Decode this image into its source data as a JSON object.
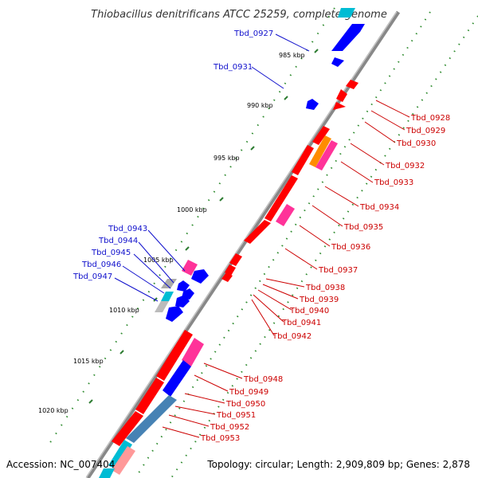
{
  "title": "Thiobacillus denitrificans ATCC 25259, complete genome",
  "footer": {
    "accession": "Accession: NC_007404",
    "summary": "Topology: circular; Length: 2,909,809 bp; Genes: 2,878"
  },
  "colors": {
    "backbone": "#8a8a8a",
    "tick": "#2e8b2e",
    "forward_label": "#1010cc",
    "reverse_label": "#cc0000",
    "forward_gene": "#0000ff",
    "reverse_gene": "#ff0000",
    "pink": "#ff3399",
    "orange": "#ff8c00",
    "steelblue": "#4682b4",
    "cyan": "#00bcd4",
    "gray": "#999999",
    "lightpink": "#ff9999"
  },
  "scale": {
    "labels": [
      "985 kbp",
      "990 kbp",
      "995 kbp",
      "1000 kbp",
      "1005 kbp",
      "1010 kbp",
      "1015 kbp",
      "1020 kbp"
    ]
  },
  "genes": {
    "forward": [
      "Tbd_0927",
      "Tbd_0931",
      "Tbd_0943",
      "Tbd_0944",
      "Tbd_0945",
      "Tbd_0946",
      "Tbd_0947"
    ],
    "reverse": [
      "Tbd_0928",
      "Tbd_0929",
      "Tbd_0930",
      "Tbd_0932",
      "Tbd_0933",
      "Tbd_0934",
      "Tbd_0935",
      "Tbd_0936",
      "Tbd_0937",
      "Tbd_0938",
      "Tbd_0939",
      "Tbd_0940",
      "Tbd_0941",
      "Tbd_0942",
      "Tbd_0948",
      "Tbd_0949",
      "Tbd_0950",
      "Tbd_0951",
      "Tbd_0952",
      "Tbd_0953"
    ]
  }
}
